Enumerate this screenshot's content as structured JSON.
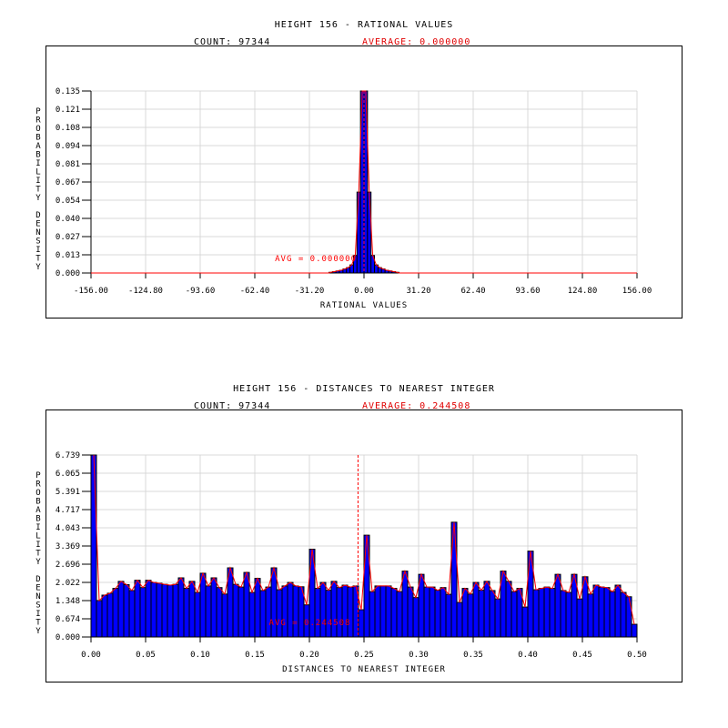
{
  "chart_data": [
    {
      "type": "bar",
      "title": "HEIGHT 156 - RATIONAL VALUES",
      "count_label": "COUNT: 97344",
      "average_label": "AVERAGE: 0.000000",
      "avg_annotation": "AVG = 0.000000",
      "average": 0.0,
      "xlabel": "RATIONAL VALUES",
      "ylabel": "PROBABILITY DENSITY",
      "xlim": [
        -156,
        156
      ],
      "ylim": [
        0,
        0.135
      ],
      "xticks": [
        "-156.00",
        "-124.80",
        "-93.60",
        "-62.40",
        "-31.20",
        "0.00",
        "31.20",
        "62.40",
        "93.60",
        "124.80",
        "156.00"
      ],
      "yticks": [
        "0.000",
        "0.013",
        "0.027",
        "0.040",
        "0.054",
        "0.067",
        "0.081",
        "0.094",
        "0.108",
        "0.121",
        "0.135"
      ],
      "grid": true,
      "bin_edges_start": -20,
      "bin_width": 2,
      "values": [
        0.0005,
        0.001,
        0.0015,
        0.002,
        0.003,
        0.004,
        0.006,
        0.013,
        0.06,
        0.135,
        0.135,
        0.06,
        0.013,
        0.006,
        0.004,
        0.003,
        0.002,
        0.0015,
        0.001,
        0.0005
      ],
      "colors": {
        "bar": "#0000ff",
        "edge": "#000000",
        "density": "#ff0000",
        "grid": "#d9d9d9"
      }
    },
    {
      "type": "bar",
      "title": "HEIGHT 156 - DISTANCES TO NEAREST INTEGER",
      "count_label": "COUNT: 97344",
      "average_label": "AVERAGE: 0.244508",
      "avg_annotation": "AVG = 0.244508",
      "average": 0.244508,
      "xlabel": "DISTANCES TO NEAREST INTEGER",
      "ylabel": "PROBABILITY DENSITY",
      "xlim": [
        0,
        0.5
      ],
      "ylim": [
        0,
        6.739
      ],
      "xticks": [
        "0.00",
        "0.05",
        "0.10",
        "0.15",
        "0.20",
        "0.25",
        "0.30",
        "0.35",
        "0.40",
        "0.45",
        "0.50"
      ],
      "yticks": [
        "0.000",
        "0.674",
        "1.348",
        "2.022",
        "2.696",
        "3.369",
        "4.043",
        "4.717",
        "5.391",
        "6.065",
        "6.739"
      ],
      "grid": true,
      "bin_edges_start": 0,
      "bin_width": 0.005,
      "values": [
        6.739,
        1.35,
        1.55,
        1.62,
        1.8,
        2.06,
        1.94,
        1.72,
        2.1,
        1.83,
        2.1,
        2.02,
        1.99,
        1.95,
        1.92,
        1.95,
        2.19,
        1.8,
        2.06,
        1.65,
        2.36,
        1.89,
        2.19,
        1.83,
        1.59,
        2.56,
        1.95,
        1.85,
        2.39,
        1.65,
        2.17,
        1.72,
        1.85,
        2.56,
        1.75,
        1.89,
        2.02,
        1.89,
        1.86,
        1.19,
        3.25,
        1.8,
        2.02,
        1.73,
        2.06,
        1.83,
        1.92,
        1.85,
        1.89,
        1.01,
        3.77,
        1.68,
        1.89,
        1.89,
        1.89,
        1.8,
        1.68,
        2.44,
        1.85,
        1.46,
        2.32,
        1.85,
        1.85,
        1.73,
        1.83,
        1.58,
        4.25,
        1.28,
        1.8,
        1.59,
        2.02,
        1.73,
        2.06,
        1.72,
        1.41,
        2.44,
        2.06,
        1.68,
        1.8,
        1.11,
        3.18,
        1.75,
        1.8,
        1.85,
        1.8,
        2.32,
        1.72,
        1.65,
        2.32,
        1.41,
        2.23,
        1.59,
        1.92,
        1.85,
        1.83,
        1.68,
        1.92,
        1.65,
        1.49,
        0.47
      ],
      "colors": {
        "bar": "#0000ff",
        "edge": "#000000",
        "density": "#ff0000",
        "grid": "#d9d9d9"
      }
    }
  ]
}
